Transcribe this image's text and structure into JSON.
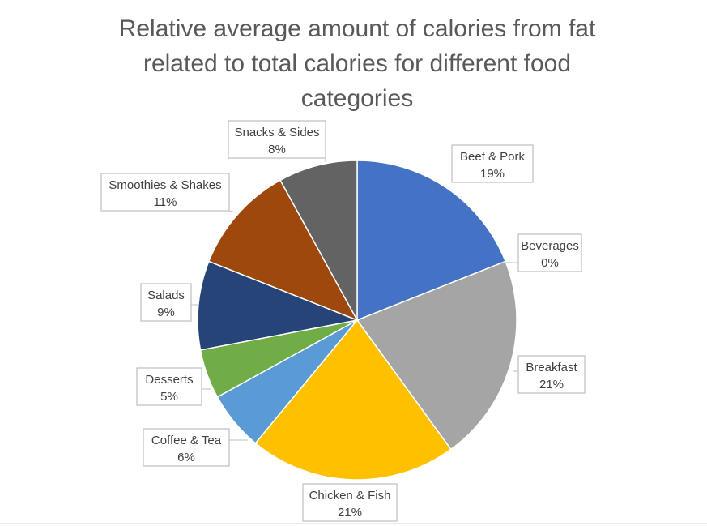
{
  "chart_data": {
    "type": "pie",
    "title": "Relative average amount of calories from fat related to total calories for different food categories",
    "title_lines": [
      "Relative average amount of calories from fat",
      "related to total calories for different food",
      "categories"
    ],
    "legend": "none",
    "slices": [
      {
        "category": "Beef & Pork",
        "value": 19,
        "label": "19%",
        "color": "#4472C4"
      },
      {
        "category": "Beverages",
        "value": 0,
        "label": "0%",
        "color": "#ED7D31"
      },
      {
        "category": "Breakfast",
        "value": 21,
        "label": "21%",
        "color": "#A5A5A5"
      },
      {
        "category": "Chicken & Fish",
        "value": 21,
        "label": "21%",
        "color": "#FFC000"
      },
      {
        "category": "Coffee & Tea",
        "value": 6,
        "label": "6%",
        "color": "#5B9BD5"
      },
      {
        "category": "Desserts",
        "value": 5,
        "label": "5%",
        "color": "#70AD47"
      },
      {
        "category": "Salads",
        "value": 9,
        "label": "9%",
        "color": "#264478"
      },
      {
        "category": "Smoothies & Shakes",
        "value": 11,
        "label": "11%",
        "color": "#9E480E"
      },
      {
        "category": "Snacks & Sides",
        "value": 8,
        "label": "8%",
        "color": "#636363"
      }
    ]
  }
}
